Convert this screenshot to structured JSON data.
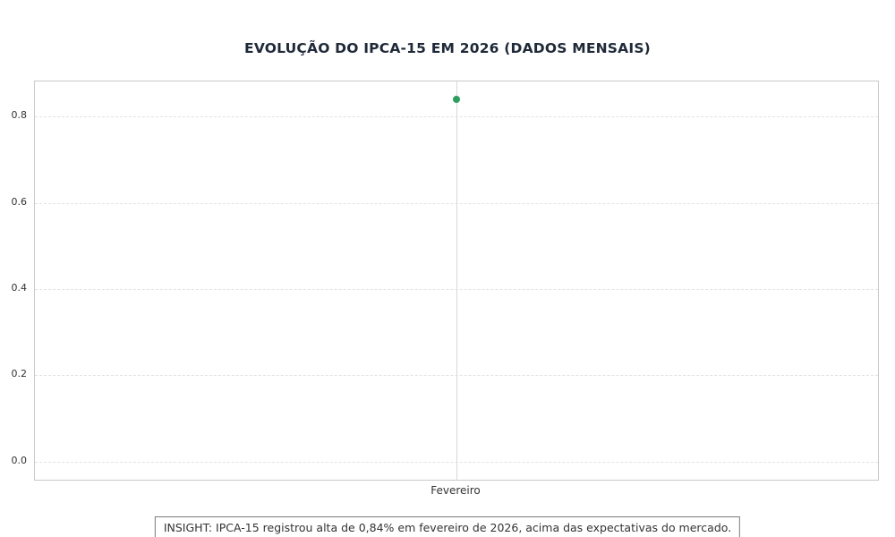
{
  "title": "EVOLUÇÃO DO IPCA-15 EM 2026 (DADOS MENSAIS)",
  "insight_text": "INSIGHT: IPCA-15 registrou alta de 0,84% em fevereiro de 2026, acima das expectativas do mercado.",
  "chart_data": {
    "type": "scatter",
    "title": "EVOLUÇÃO DO IPCA-15 EM 2026 (DADOS MENSAIS)",
    "categories": [
      "Fevereiro"
    ],
    "series": [
      {
        "name": "IPCA-15",
        "values": [
          0.84
        ]
      }
    ],
    "xlabel": "",
    "ylabel": "",
    "ylim": [
      -0.042,
      0.882
    ],
    "yticks": [
      0.0,
      0.2,
      0.4,
      0.6,
      0.8
    ],
    "ytick_labels": [
      "0.0",
      "0.2",
      "0.4",
      "0.6",
      "0.8"
    ],
    "grid": true,
    "legend": "none",
    "annotation": "INSIGHT: IPCA-15 registrou alta de 0,84% em fevereiro de 2026, acima das expectativas do mercado.",
    "colors": {
      "point": "#2e9e5f",
      "title": "#1f2937",
      "grid": "#e2e2e2",
      "axis_border": "#c9c9c9",
      "vline": "#d8d8d8"
    }
  }
}
